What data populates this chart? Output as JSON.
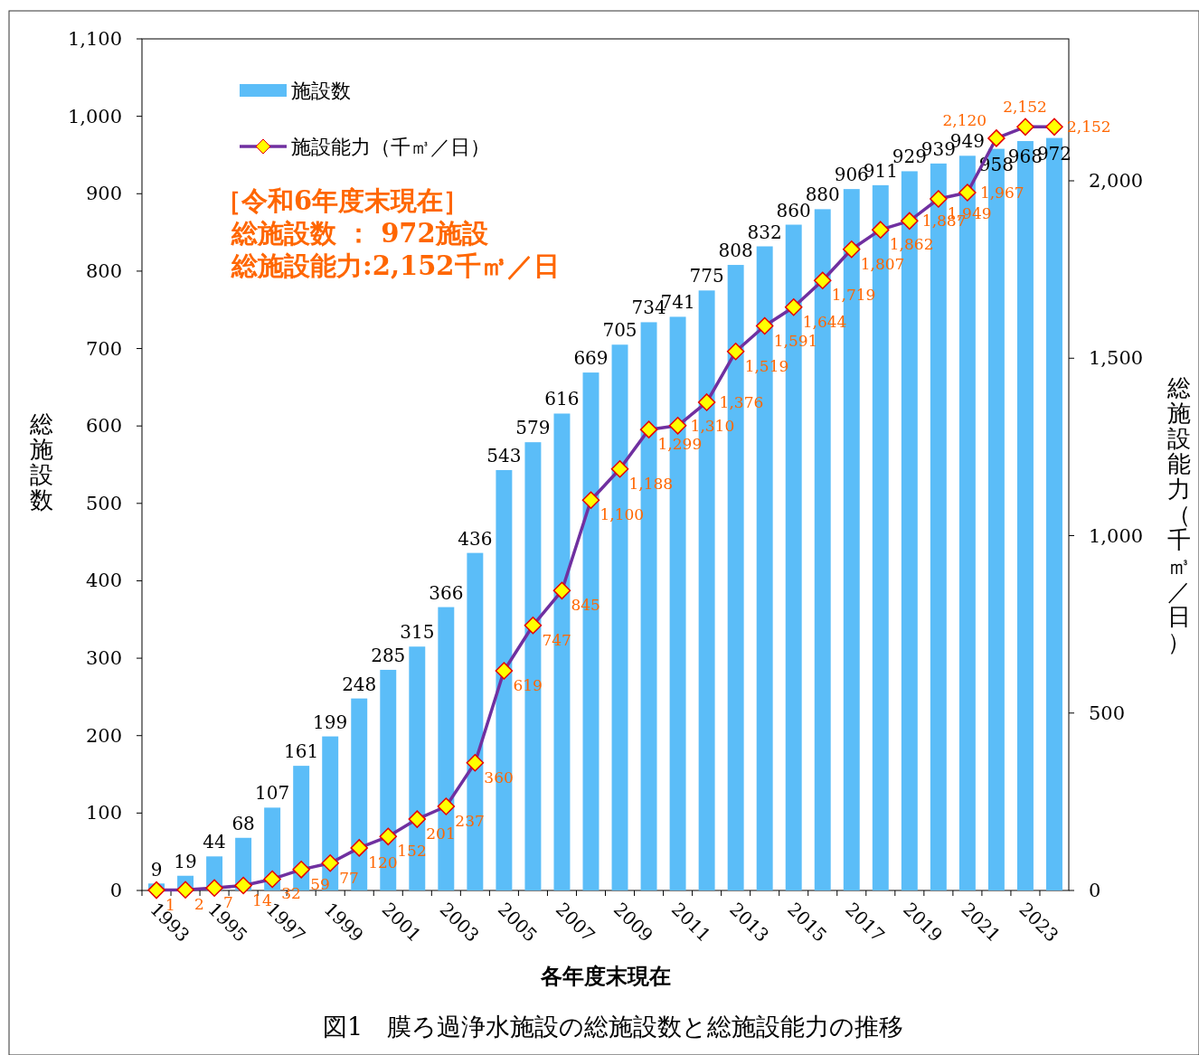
{
  "chart_data": {
    "type": "bar",
    "categories": [
      "1993",
      null,
      "1995",
      null,
      "1997",
      null,
      "1999",
      null,
      "2001",
      null,
      "2003",
      null,
      "2005",
      null,
      "2007",
      null,
      "2009",
      null,
      "2011",
      null,
      "2013",
      null,
      "2015",
      null,
      "2017",
      null,
      "2019",
      null,
      "2021",
      null,
      "2023",
      null
    ],
    "series": [
      {
        "name": "施設数",
        "color": "#5bbdf8",
        "values": [
          9,
          19,
          44,
          68,
          107,
          161,
          199,
          248,
          285,
          315,
          366,
          436,
          543,
          579,
          616,
          669,
          705,
          734,
          741,
          775,
          808,
          832,
          860,
          880,
          906,
          911,
          929,
          939,
          949,
          958,
          968,
          972
        ]
      },
      {
        "name": "施設能力（千㎥／日）",
        "type": "line",
        "axis": "y2",
        "color": "#7030a0",
        "marker": "diamond",
        "value_labels": [
          "1",
          "2",
          "7",
          "14",
          "32",
          "59",
          "77",
          "120",
          "152",
          "201",
          "237",
          "360",
          "619",
          "747",
          "845",
          "1,100",
          "1,188",
          "1,299",
          "1,310",
          "1,376",
          "1,519",
          "1,591",
          "1,644",
          "1,719",
          "1,807",
          "1,862",
          "1,887",
          "1,949",
          "1,967",
          "2,120",
          "2,152",
          "2,152"
        ],
        "values": [
          1,
          2,
          7,
          14,
          32,
          59,
          77,
          120,
          152,
          201,
          237,
          360,
          619,
          747,
          845,
          1100,
          1188,
          1299,
          1310,
          1376,
          1519,
          1591,
          1644,
          1719,
          1807,
          1862,
          1887,
          1949,
          1967,
          2120,
          2152,
          2152
        ]
      }
    ],
    "xlabel": "各年度末現在",
    "ylabel": "総施設数",
    "y2label": "総施設能力（千㎥／日）",
    "ylim": [
      0,
      1100
    ],
    "yticks": [
      0,
      100,
      200,
      300,
      400,
      500,
      600,
      700,
      800,
      900,
      {
        "value": 1000,
        "label": "1,000"
      },
      {
        "value": 1100,
        "label": "1,100"
      }
    ],
    "y2lim": [
      0,
      2400
    ],
    "y2ticks": [
      0,
      500,
      {
        "value": 1000,
        "label": "1,000"
      },
      {
        "value": 1500,
        "label": "1,500"
      },
      {
        "value": 2000,
        "label": "2,000"
      }
    ],
    "data_labels": true,
    "legend": "top left",
    "grid": false,
    "annotations": [
      "［令和6年度末現在］",
      "総施設数 ： 972施設",
      "総施設能力:2,152千㎥／日",
      "図1　膜ろ過浄水施設の総施設数と総施設能力の推移"
    ]
  }
}
